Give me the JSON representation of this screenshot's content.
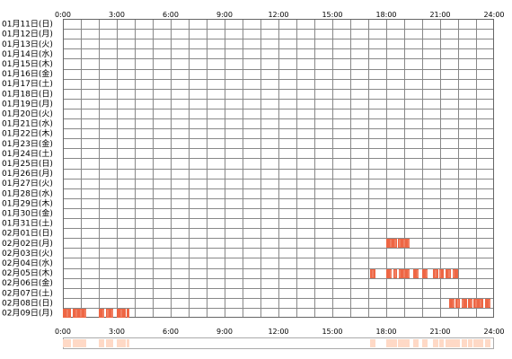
{
  "chart_data": {
    "type": "heatmap",
    "title": "",
    "xlabel": "",
    "ylabel": "",
    "x_tick_labels": [
      "0:00",
      "3:00",
      "6:00",
      "9:00",
      "12:00",
      "15:00",
      "18:00",
      "21:00",
      "24:00"
    ],
    "xlim_hours": [
      0,
      24
    ],
    "grid": true,
    "hours_per_cell": 1,
    "rows": [
      {
        "label": "01月11日(日)",
        "active": []
      },
      {
        "label": "01月12日(月)",
        "active": []
      },
      {
        "label": "01月13日(火)",
        "active": []
      },
      {
        "label": "01月14日(水)",
        "active": []
      },
      {
        "label": "01月15日(木)",
        "active": []
      },
      {
        "label": "01月16日(金)",
        "active": []
      },
      {
        "label": "01月17日(土)",
        "active": []
      },
      {
        "label": "01月18日(日)",
        "active": []
      },
      {
        "label": "01月19日(月)",
        "active": []
      },
      {
        "label": "01月20日(火)",
        "active": []
      },
      {
        "label": "01月21日(水)",
        "active": []
      },
      {
        "label": "01月22日(木)",
        "active": []
      },
      {
        "label": "01月23日(金)",
        "active": []
      },
      {
        "label": "01月24日(土)",
        "active": []
      },
      {
        "label": "01月25日(日)",
        "active": []
      },
      {
        "label": "01月26日(月)",
        "active": []
      },
      {
        "label": "01月27日(火)",
        "active": []
      },
      {
        "label": "01月28日(水)",
        "active": []
      },
      {
        "label": "01月29日(木)",
        "active": []
      },
      {
        "label": "01月30日(金)",
        "active": []
      },
      {
        "label": "01月31日(土)",
        "active": []
      },
      {
        "label": "02月01日(日)",
        "active": []
      },
      {
        "label": "02月02日(月)",
        "active": [
          [
            18.0,
            18.6
          ],
          [
            18.65,
            19.3
          ]
        ]
      },
      {
        "label": "02月03日(火)",
        "active": []
      },
      {
        "label": "02月04日(水)",
        "active": []
      },
      {
        "label": "02月05日(木)",
        "active": [
          [
            17.1,
            17.4
          ],
          [
            18.0,
            18.3
          ],
          [
            18.4,
            18.6
          ],
          [
            18.7,
            19.3
          ],
          [
            19.5,
            19.8
          ],
          [
            20.0,
            20.3
          ],
          [
            20.6,
            20.9
          ],
          [
            20.95,
            21.2
          ],
          [
            21.3,
            21.6
          ],
          [
            21.7,
            22.0
          ]
        ]
      },
      {
        "label": "02月06日(金)",
        "active": []
      },
      {
        "label": "02月07日(土)",
        "active": []
      },
      {
        "label": "02月08日(日)",
        "active": [
          [
            21.5,
            21.8
          ],
          [
            21.85,
            22.1
          ],
          [
            22.2,
            22.5
          ],
          [
            22.55,
            22.8
          ],
          [
            22.85,
            23.4
          ],
          [
            23.5,
            23.8
          ]
        ]
      },
      {
        "label": "02月09日(月)",
        "active": [
          [
            0.0,
            0.45
          ],
          [
            0.55,
            1.3
          ],
          [
            2.0,
            2.3
          ],
          [
            2.4,
            2.8
          ],
          [
            3.0,
            3.5
          ],
          [
            3.55,
            3.7
          ]
        ]
      }
    ],
    "colors": {
      "active": "#ee6644",
      "active_separator": "#ffffff",
      "grid_line": "#888888",
      "chart_border": "#666666",
      "summary_fill": "#ffd9c6",
      "summary_border": "#aaaaaa"
    }
  }
}
